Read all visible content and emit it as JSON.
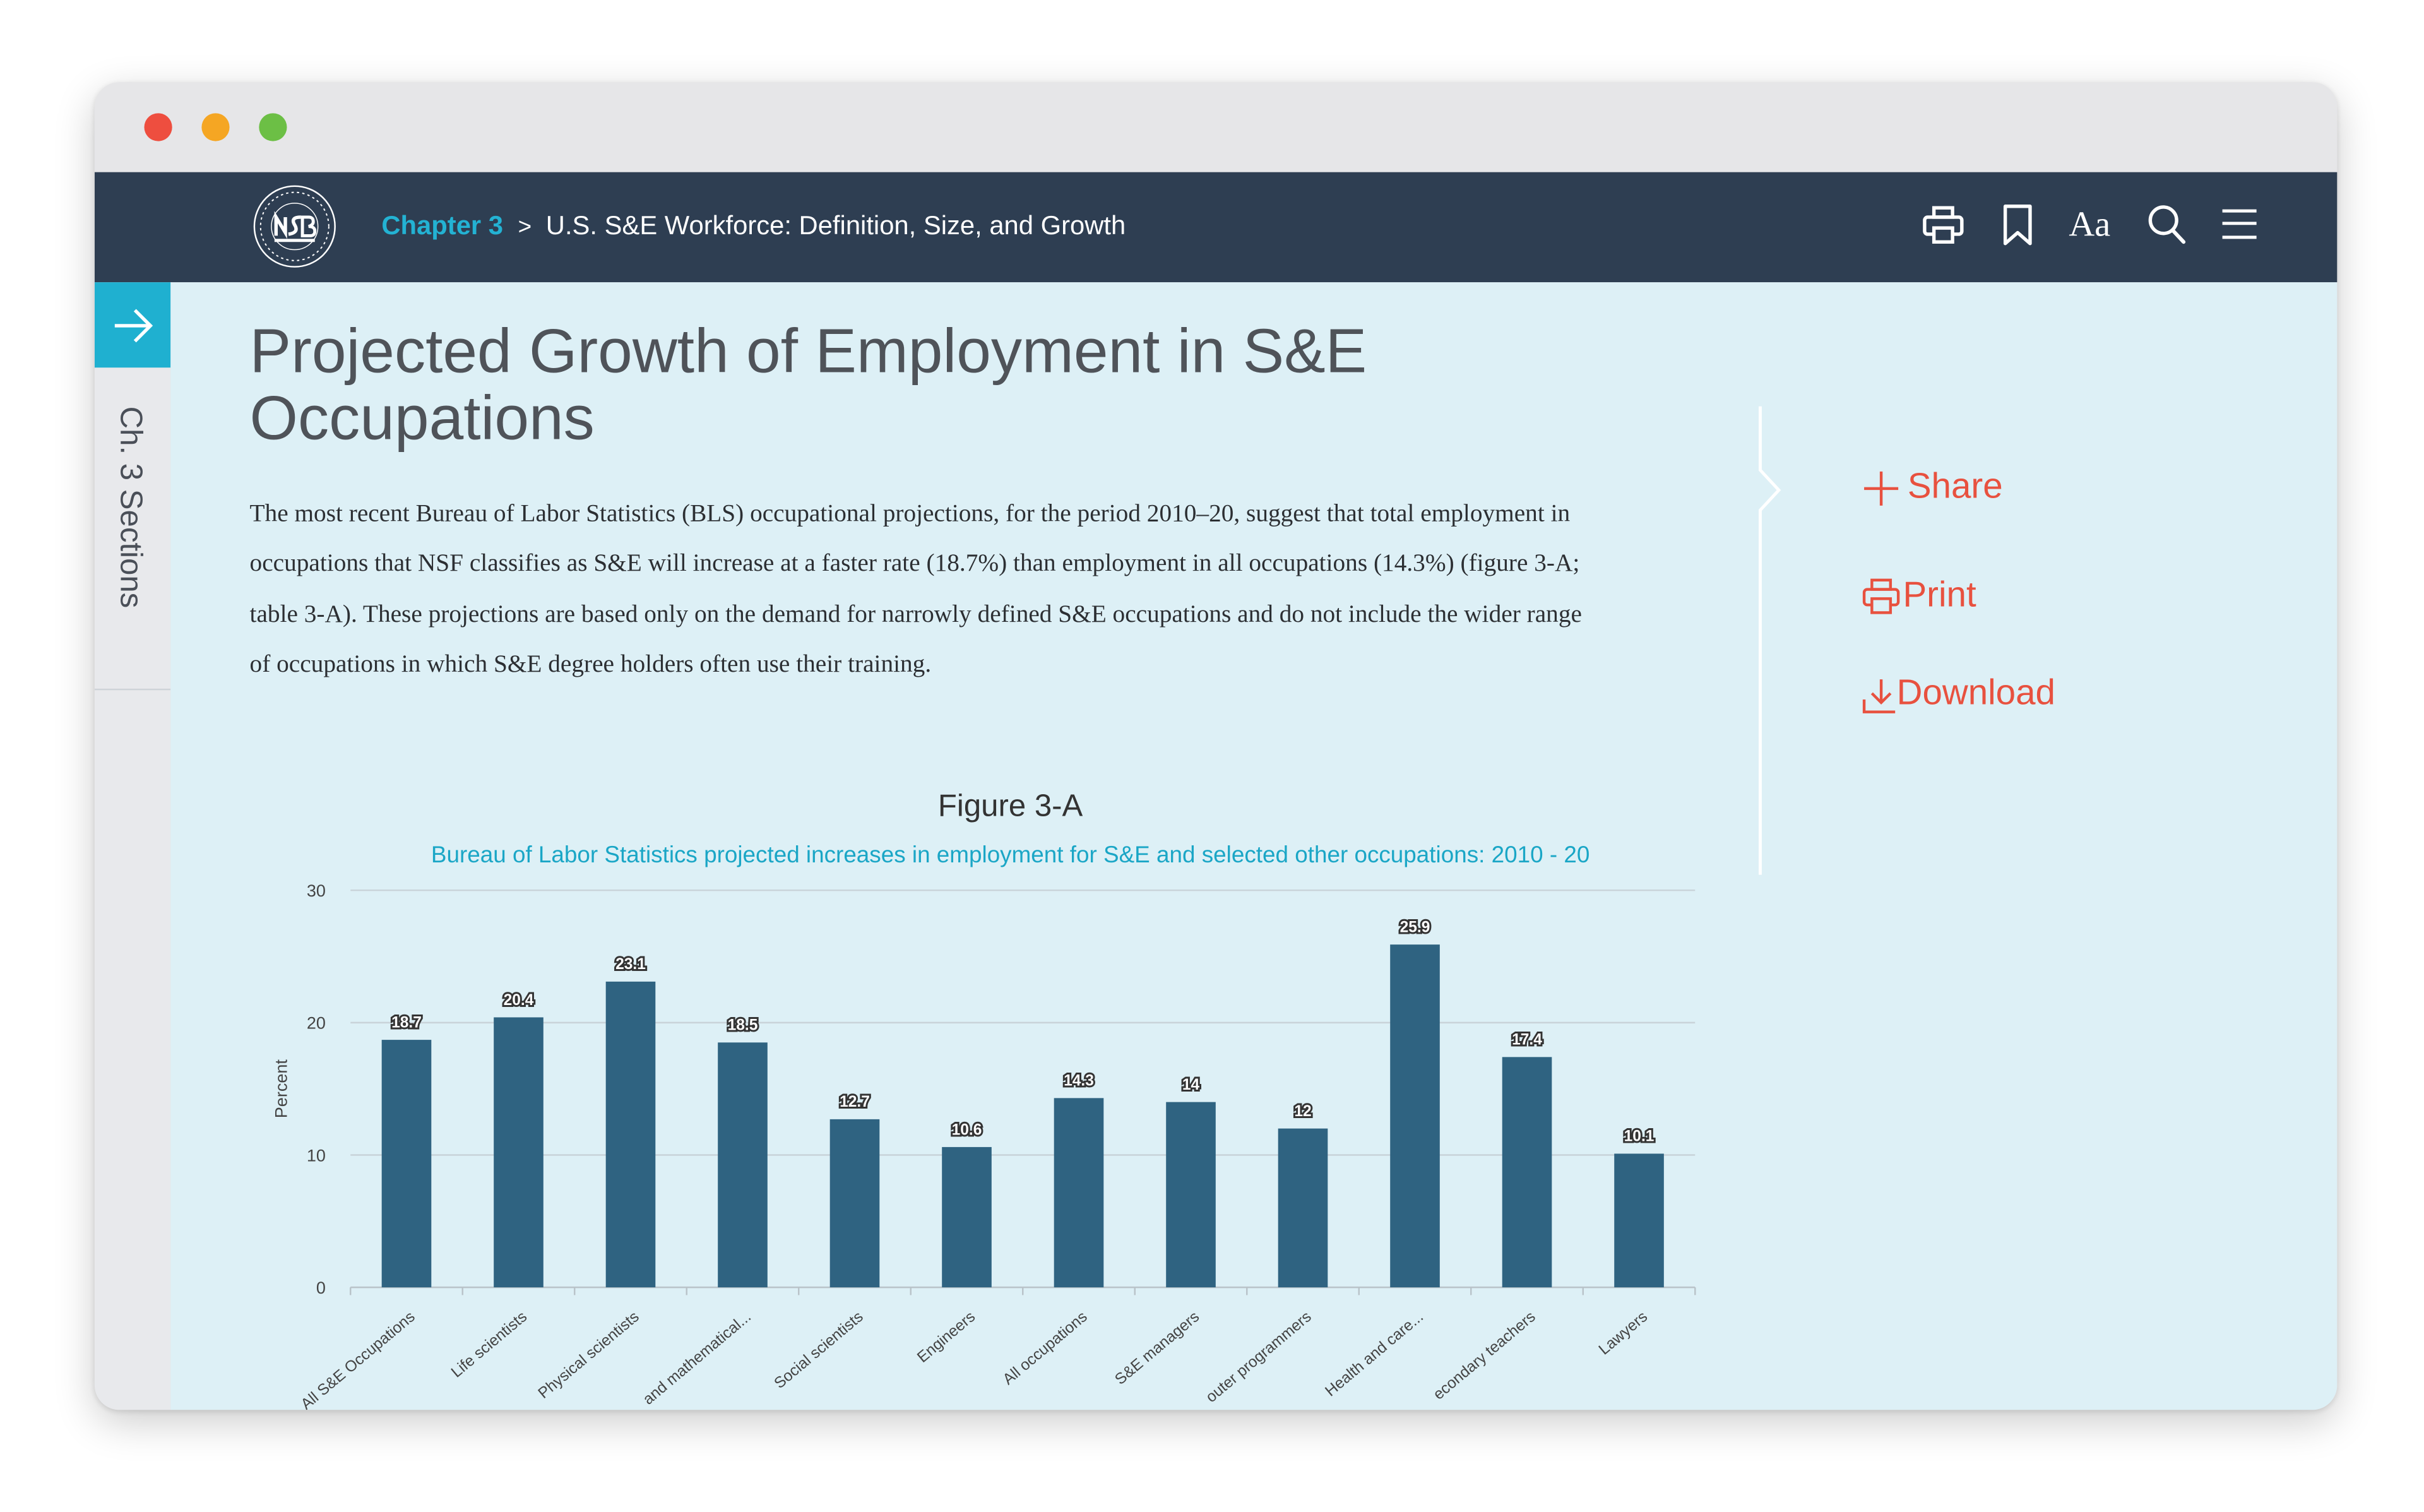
{
  "breadcrumb": {
    "chapter": "Chapter 3",
    "separator": ">",
    "title": "U.S. S&E Workforce: Definition, Size, and Growth"
  },
  "toolbar": {
    "icons": [
      "print-icon",
      "bookmark-icon",
      "font-size-icon",
      "search-icon",
      "menu-icon"
    ],
    "font_size_label": "Aa"
  },
  "sidebar": {
    "label": "Ch. 3 Sections"
  },
  "article": {
    "title": "Projected Growth of Employment in S&E Occupations",
    "paragraph": "The most recent Bureau of Labor Statistics (BLS) occupational projections, for the period 2010–20, suggest that total employment in occupations that NSF classifies as S&E will increase at a faster rate (18.7%) than employment in all occupations (14.3%) (figure 3-A; table 3-A). These projections are based only on the demand for narrowly defined S&E occupations and do not include the wider range of occupations in which S&E degree holders often use their training."
  },
  "actions": {
    "share": "Share",
    "print": "Print",
    "download": "Download"
  },
  "figure": {
    "label": "Figure 3-A",
    "subtitle": "Bureau of Labor Statistics projected increases in employment for S&E and selected other occupations: 2010 - 20"
  },
  "colors": {
    "navbar": "#2e3e52",
    "accent": "#1fb0d0",
    "action": "#e8513f",
    "bar": "#2f6381",
    "content_bg": "#ddf0f6"
  },
  "chart_data": {
    "type": "bar",
    "title": "Figure 3-A",
    "subtitle": "Bureau of Labor Statistics projected increases in employment for S&E and selected other occupations: 2010 - 20",
    "xlabel": "",
    "ylabel": "Percent",
    "ylim": [
      0,
      30
    ],
    "yticks": [
      0,
      10,
      20,
      30
    ],
    "grid": true,
    "categories": [
      "All S&E Occupations",
      "Life scientists",
      "Physical scientists",
      "and mathematical...",
      "Social scientists",
      "Engineers",
      "All occupations",
      "S&E managers",
      "outer programmers",
      "Health and care...",
      "econdary teachers",
      "Lawyers"
    ],
    "values": [
      18.7,
      20.4,
      23.1,
      18.5,
      12.7,
      10.6,
      14.3,
      14,
      12,
      25.9,
      17.4,
      10.1
    ],
    "value_labels": [
      "18.7",
      "20.4",
      "23.1",
      "18.5",
      "12.7",
      "10.6",
      "14.3",
      "14",
      "12",
      "25.9",
      "17.4",
      "10.1"
    ]
  }
}
